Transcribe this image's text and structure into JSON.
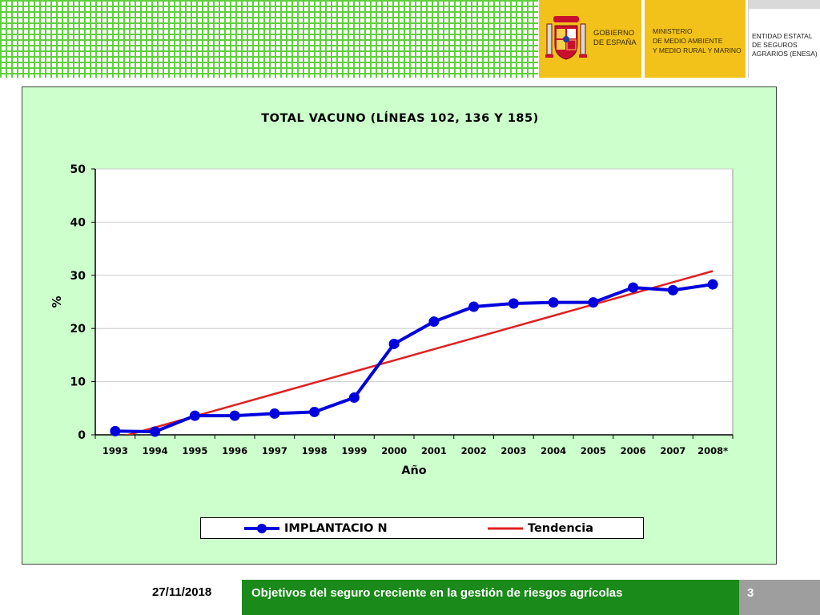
{
  "header": {
    "gobierno": [
      "GOBIERNO",
      "DE ESPAÑA"
    ],
    "ministerio": [
      "MINISTERIO",
      "DE MEDIO AMBIENTE",
      "Y MEDIO RURAL Y MARINO"
    ],
    "enesa": [
      "ENTIDAD ESTATAL",
      "DE SEGUROS",
      "AGRARIOS (ENESA)"
    ],
    "icon": "coat-of-arms-icon"
  },
  "chart_data": {
    "type": "line",
    "title": "TOTAL VACUNO (LÍNEAS 102, 136 Y 185)",
    "xlabel": "Año",
    "ylabel": "%",
    "categories": [
      "1993",
      "1994",
      "1995",
      "1996",
      "1997",
      "1998",
      "1999",
      "2000",
      "2001",
      "2002",
      "2003",
      "2004",
      "2005",
      "2006",
      "2007",
      "2008*"
    ],
    "ylim": [
      0,
      50
    ],
    "yticks": [
      0,
      10,
      20,
      30,
      40,
      50
    ],
    "grid": true,
    "legend_position": "bottom",
    "series": [
      {
        "name": "IMPLANTACIO N",
        "color": "#0000dd",
        "marker": "circle",
        "values": [
          0.7,
          0.6,
          3.6,
          3.6,
          4.0,
          4.3,
          7.0,
          17.1,
          21.3,
          24.1,
          24.7,
          24.9,
          24.9,
          27.7,
          27.2,
          28.3
        ]
      },
      {
        "name": "Tendencia",
        "color": "#e02020",
        "marker": "none",
        "values": [
          -0.7,
          1.4,
          3.5,
          5.6,
          7.7,
          9.8,
          11.9,
          14.0,
          16.1,
          18.2,
          20.3,
          22.4,
          24.5,
          26.6,
          28.7,
          30.8
        ]
      }
    ]
  },
  "footer": {
    "date": "27/11/2018",
    "title": "Objetivos del seguro creciente en la gestión de riesgos agrícolas",
    "page": "3"
  }
}
